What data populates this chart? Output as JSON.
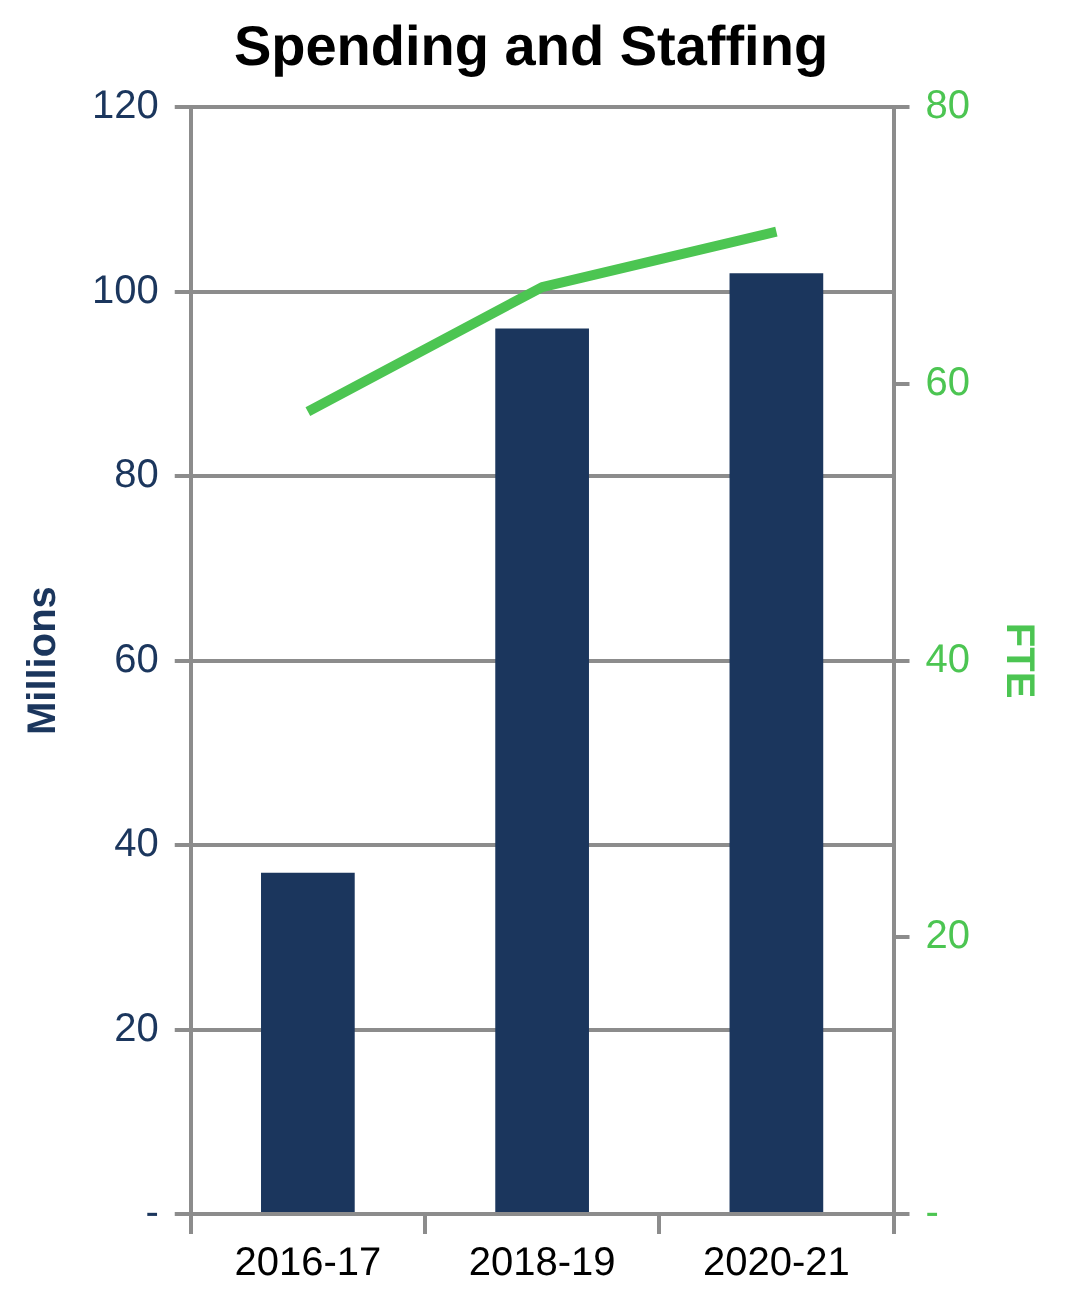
{
  "chart_data": {
    "type": "bar",
    "title": "Spending and Staffing",
    "ylabel": "Millions",
    "y2label": "FTE",
    "categories": [
      "2016-17",
      "2018-19",
      "2020-21"
    ],
    "series": [
      {
        "color": "#1b365d",
        "values": [
          37,
          96,
          102
        ]
      },
      {
        "type": "line",
        "axis": "y2",
        "color": "#4cc552",
        "values": [
          58,
          67,
          71
        ]
      }
    ],
    "ylim": [
      0,
      120
    ],
    "yticks": [
      {
        "value": 0,
        "label": "-"
      },
      20,
      40,
      60,
      80,
      100,
      120
    ],
    "y2lim": [
      0,
      80
    ],
    "y2ticks": [
      {
        "value": 0,
        "label": "-"
      },
      20,
      40,
      60,
      80
    ],
    "grid": "y",
    "legend": false,
    "marker": "none",
    "line_style": "solid"
  }
}
